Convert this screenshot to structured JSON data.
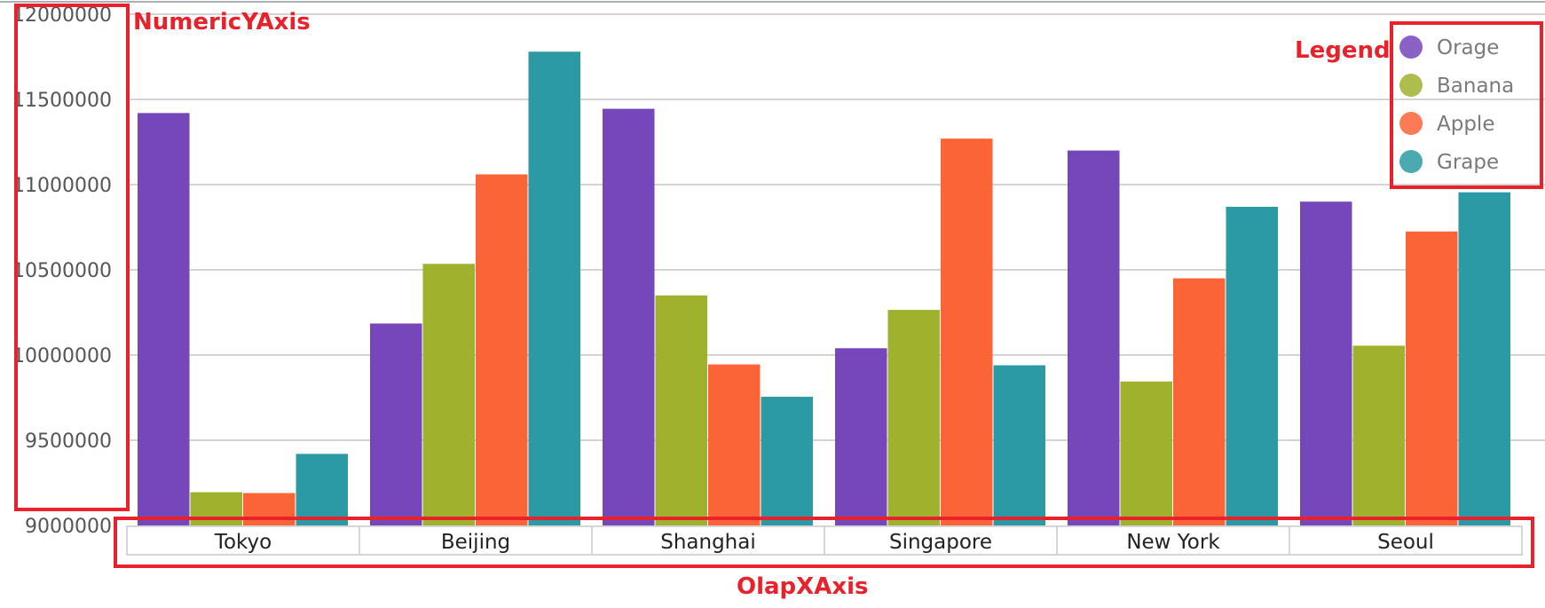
{
  "chart_data": {
    "type": "bar",
    "categories": [
      "Tokyo",
      "Beijing",
      "Shanghai",
      "Singapore",
      "New York",
      "Seoul"
    ],
    "series": [
      {
        "name": "Orage",
        "color": "#7646bb",
        "values": [
          11420000,
          10185000,
          11445000,
          10040000,
          11200000,
          10900000
        ]
      },
      {
        "name": "Banana",
        "color": "#a0b22d",
        "values": [
          9195000,
          10535000,
          10350000,
          10265000,
          9845000,
          10055000
        ]
      },
      {
        "name": "Apple",
        "color": "#fb6436",
        "values": [
          9190000,
          11060000,
          9945000,
          11270000,
          10450000,
          10725000
        ]
      },
      {
        "name": "Grape",
        "color": "#2c9aa5",
        "values": [
          9420000,
          11780000,
          9755000,
          9940000,
          10870000,
          10955000
        ]
      }
    ],
    "yticks": [
      "9000000",
      "9500000",
      "10000000",
      "10500000",
      "11000000",
      "11500000",
      "12000000"
    ],
    "ylim": [
      9000000,
      12000000
    ],
    "grid": true,
    "legend_position": "top-right"
  },
  "annotations": {
    "y_axis": "NumericYAxis",
    "x_axis": "OlapXAxis",
    "legend": "Legend",
    "color": "#e8212b"
  }
}
